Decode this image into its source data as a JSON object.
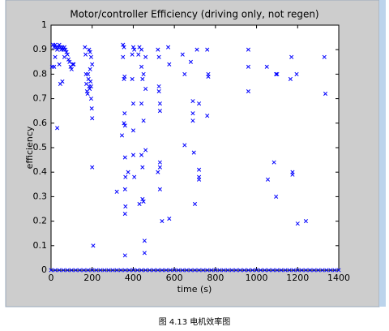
{
  "chart_data": {
    "type": "scatter",
    "title": "Motor/controller Efficiency (driving only, not regen)",
    "x_label": "time (s)",
    "y_label": "efficiency",
    "caption": "图 4.13 电机效率图",
    "color": "#0000ff",
    "xlim": [
      0,
      1400
    ],
    "xticks": [
      0,
      200,
      400,
      600,
      800,
      1000,
      1200,
      1400
    ],
    "ylim": [
      0,
      1
    ],
    "yticks": [
      0,
      0.1,
      0.2,
      0.3,
      0.4,
      0.5,
      0.6,
      0.7,
      0.8,
      0.9,
      1
    ],
    "x": [
      5,
      10,
      15,
      20,
      25,
      30,
      35,
      40,
      45,
      50,
      55,
      60,
      65,
      70,
      75,
      80,
      85,
      90,
      95,
      100,
      105,
      110,
      30,
      45,
      55,
      40,
      20,
      15,
      65,
      165,
      168,
      170,
      172,
      175,
      178,
      180,
      182,
      185,
      188,
      190,
      192,
      195,
      195,
      198,
      200,
      200,
      205,
      185,
      190,
      195,
      200,
      320,
      345,
      350,
      355,
      350,
      355,
      358,
      358,
      355,
      360,
      360,
      362,
      360,
      362,
      360,
      360,
      375,
      395,
      400,
      405,
      395,
      400,
      400,
      400,
      405,
      425,
      430,
      440,
      445,
      440,
      450,
      440,
      445,
      450,
      445,
      455,
      455,
      460,
      460,
      430,
      460,
      440,
      450,
      520,
      525,
      525,
      525,
      530,
      530,
      520,
      530,
      530,
      530,
      540,
      570,
      575,
      575,
      640,
      650,
      650,
      680,
      690,
      690,
      690,
      695,
      700,
      720,
      720,
      720,
      720,
      710,
      760,
      765,
      765,
      760,
      960,
      960,
      960,
      1050,
      1055,
      1085,
      1095,
      1100,
      1095,
      1165,
      1170,
      1175,
      1175,
      1195,
      1200,
      1240,
      1330,
      1335,
      0,
      20,
      40,
      60,
      80,
      100,
      120,
      140,
      160,
      180,
      200,
      220,
      240,
      260,
      280,
      300,
      320,
      340,
      360,
      380,
      400,
      420,
      440,
      460,
      480,
      500,
      520,
      540,
      560,
      580,
      600,
      620,
      640,
      660,
      680,
      700,
      720,
      740,
      760,
      780,
      800,
      820,
      840,
      860,
      880,
      900,
      920,
      940,
      960,
      980,
      1000,
      1020,
      1040,
      1060,
      1080,
      1100,
      1120,
      1140,
      1160,
      1180,
      1200,
      1220,
      1240,
      1260,
      1280,
      1300,
      1320,
      1340,
      1360,
      1380,
      1400
    ],
    "values": [
      0.83,
      0.92,
      0.91,
      0.92,
      0.91,
      0.9,
      0.91,
      0.92,
      0.91,
      0.9,
      0.91,
      0.9,
      0.91,
      0.9,
      0.89,
      0.88,
      0.86,
      0.85,
      0.83,
      0.82,
      0.84,
      0.84,
      0.58,
      0.76,
      0.77,
      0.84,
      0.87,
      0.83,
      0.87,
      0.91,
      0.88,
      0.8,
      0.76,
      0.73,
      0.72,
      0.8,
      0.78,
      0.75,
      0.74,
      0.82,
      0.77,
      0.75,
      0.7,
      0.66,
      0.62,
      0.42,
      0.1,
      0.9,
      0.89,
      0.87,
      0.84,
      0.32,
      0.55,
      0.92,
      0.91,
      0.87,
      0.78,
      0.79,
      0.64,
      0.6,
      0.59,
      0.46,
      0.38,
      0.33,
      0.26,
      0.23,
      0.06,
      0.4,
      0.88,
      0.91,
      0.9,
      0.78,
      0.68,
      0.57,
      0.47,
      0.38,
      0.88,
      0.91,
      0.9,
      0.78,
      0.68,
      0.61,
      0.47,
      0.42,
      0.28,
      0.29,
      0.12,
      0.07,
      0.87,
      0.74,
      0.27,
      0.49,
      0.83,
      0.8,
      0.9,
      0.87,
      0.75,
      0.73,
      0.68,
      0.65,
      0.4,
      0.44,
      0.42,
      0.33,
      0.2,
      0.91,
      0.84,
      0.21,
      0.88,
      0.8,
      0.51,
      0.85,
      0.69,
      0.64,
      0.61,
      0.48,
      0.27,
      0.68,
      0.41,
      0.38,
      0.37,
      0.9,
      0.9,
      0.8,
      0.79,
      0.63,
      0.9,
      0.83,
      0.73,
      0.83,
      0.37,
      0.44,
      0.8,
      0.8,
      0.3,
      0.78,
      0.87,
      0.4,
      0.39,
      0.8,
      0.19,
      0.2,
      0.87,
      0.72,
      0,
      0,
      0,
      0,
      0,
      0,
      0,
      0,
      0,
      0,
      0,
      0,
      0,
      0,
      0,
      0,
      0,
      0,
      0,
      0,
      0,
      0,
      0,
      0,
      0,
      0,
      0,
      0,
      0,
      0,
      0,
      0,
      0,
      0,
      0,
      0,
      0,
      0,
      0,
      0,
      0,
      0,
      0,
      0,
      0,
      0,
      0,
      0,
      0,
      0,
      0,
      0,
      0,
      0,
      0,
      0,
      0,
      0,
      0,
      0,
      0,
      0,
      0,
      0,
      0,
      0,
      0,
      0,
      0,
      0,
      0
    ]
  }
}
